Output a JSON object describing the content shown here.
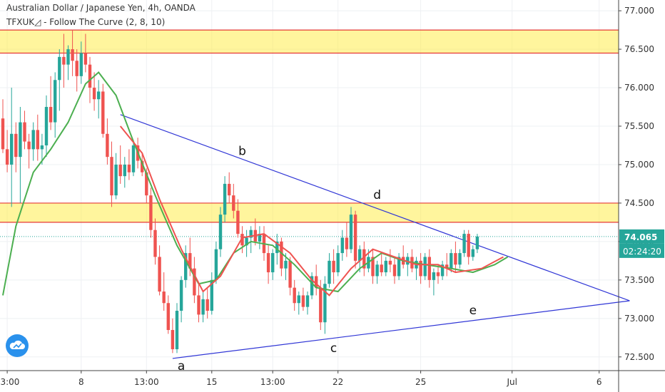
{
  "header": {
    "symbol": "Australian Dollar / Japanese Yen, 4h, OANDA",
    "indicator": "TFXUK◿ - Follow The Curve (2, 8, 10)"
  },
  "price_labels": {
    "current": "74.065",
    "countdown": "02:24:20"
  },
  "colors": {
    "up": "#26a69a",
    "down": "#ef5350",
    "zone_fill": "#ffeb3b",
    "zone_border": "#e53935",
    "trend": "#3036d6",
    "fast_ma": "#ef5350",
    "slow_ma": "#4caf50",
    "price_tag": "#26a69a"
  },
  "logo": {
    "icon": "tradingview-cloud-icon"
  },
  "chart_data": {
    "type": "candlestick",
    "title": "Australian Dollar / Japanese Yen, 4h, OANDA",
    "indicator": "Follow The Curve (2, 8, 10)",
    "y_ticks": [
      "77.000",
      "76.500",
      "76.000",
      "75.500",
      "75.000",
      "74.500",
      "74.000",
      "73.500",
      "73.000",
      "72.500"
    ],
    "ylim": [
      72.22,
      77.14
    ],
    "x_ticks": [
      {
        "label": "13:00",
        "i": 1
      },
      {
        "label": "8",
        "i": 18
      },
      {
        "label": "13:00",
        "i": 33
      },
      {
        "label": "15",
        "i": 48
      },
      {
        "label": "13:00",
        "i": 62
      },
      {
        "label": "22",
        "i": 77
      },
      {
        "label": "25",
        "i": 96
      },
      {
        "label": "Jul",
        "i": 117
      },
      {
        "label": "6",
        "i": 137
      }
    ],
    "zones": [
      [
        76.45,
        76.75
      ],
      [
        74.25,
        74.5
      ]
    ],
    "trendlines": [
      {
        "from": [
          27,
          75.65
        ],
        "to": [
          144,
          73.23
        ]
      },
      {
        "from": [
          39,
          72.48
        ],
        "to": [
          144,
          73.23
        ]
      }
    ],
    "wave_labels": [
      {
        "text": "a",
        "i": 41,
        "price": 72.48
      },
      {
        "text": "b",
        "i": 55,
        "price": 75.07
      },
      {
        "text": "c",
        "i": 76,
        "price": 72.71
      },
      {
        "text": "d",
        "i": 86,
        "price": 74.5
      },
      {
        "text": "e",
        "i": 108,
        "price": 73.2
      }
    ],
    "last_price": 74.065,
    "candles": [
      [
        75.6,
        75.85,
        75.15,
        75.2
      ],
      [
        75.2,
        75.45,
        74.9,
        75.0
      ],
      [
        75.0,
        76.0,
        74.45,
        75.4
      ],
      [
        75.4,
        75.55,
        74.9,
        75.1
      ],
      [
        75.1,
        75.75,
        74.5,
        75.55
      ],
      [
        75.55,
        75.7,
        75.2,
        75.3
      ],
      [
        75.3,
        75.4,
        74.95,
        75.2
      ],
      [
        75.2,
        75.55,
        75.05,
        75.45
      ],
      [
        75.45,
        75.65,
        75.05,
        75.2
      ],
      [
        75.2,
        75.4,
        75.0,
        75.25
      ],
      [
        75.25,
        75.9,
        75.1,
        75.75
      ],
      [
        75.75,
        76.15,
        75.45,
        75.55
      ],
      [
        75.55,
        76.2,
        75.35,
        76.1
      ],
      [
        76.1,
        76.5,
        75.7,
        76.4
      ],
      [
        76.4,
        76.7,
        76.0,
        76.3
      ],
      [
        76.3,
        76.55,
        76.1,
        76.5
      ],
      [
        76.5,
        76.75,
        76.15,
        76.35
      ],
      [
        76.35,
        76.5,
        75.95,
        76.15
      ],
      [
        76.15,
        76.6,
        76.05,
        76.45
      ],
      [
        76.45,
        76.7,
        76.2,
        76.3
      ],
      [
        76.3,
        76.4,
        75.8,
        76.0
      ],
      [
        76.0,
        76.2,
        75.7,
        75.85
      ],
      [
        75.85,
        76.1,
        75.6,
        75.95
      ],
      [
        75.95,
        76.05,
        75.35,
        75.4
      ],
      [
        75.4,
        75.6,
        75.0,
        75.1
      ],
      [
        75.1,
        75.3,
        74.45,
        74.6
      ],
      [
        74.6,
        75.15,
        74.55,
        75.0
      ],
      [
        75.0,
        75.25,
        74.75,
        74.85
      ],
      [
        74.85,
        75.1,
        74.7,
        75.0
      ],
      [
        75.0,
        75.2,
        74.8,
        74.9
      ],
      [
        74.9,
        75.3,
        74.85,
        75.25
      ],
      [
        75.25,
        75.35,
        74.95,
        75.05
      ],
      [
        75.05,
        75.15,
        74.85,
        74.9
      ],
      [
        74.9,
        74.95,
        74.5,
        74.6
      ],
      [
        74.6,
        74.7,
        74.05,
        74.15
      ],
      [
        74.15,
        74.3,
        73.7,
        73.8
      ],
      [
        73.8,
        73.95,
        73.3,
        73.35
      ],
      [
        73.35,
        73.6,
        73.1,
        73.2
      ],
      [
        73.2,
        73.3,
        72.8,
        72.85
      ],
      [
        72.85,
        73.0,
        72.55,
        72.6
      ],
      [
        72.6,
        73.2,
        72.55,
        73.1
      ],
      [
        73.1,
        73.55,
        72.95,
        73.5
      ],
      [
        73.5,
        73.95,
        73.4,
        73.85
      ],
      [
        73.85,
        74.05,
        73.55,
        73.65
      ],
      [
        73.65,
        73.8,
        73.2,
        73.3
      ],
      [
        73.3,
        73.45,
        72.95,
        73.05
      ],
      [
        73.05,
        73.35,
        72.95,
        73.25
      ],
      [
        73.25,
        73.4,
        73.0,
        73.1
      ],
      [
        73.1,
        73.6,
        73.05,
        73.5
      ],
      [
        73.5,
        74.0,
        73.45,
        73.9
      ],
      [
        73.9,
        74.45,
        73.8,
        74.35
      ],
      [
        74.35,
        74.85,
        74.25,
        74.75
      ],
      [
        74.75,
        74.9,
        74.5,
        74.6
      ],
      [
        74.6,
        74.75,
        74.3,
        74.4
      ],
      [
        74.4,
        74.55,
        74.05,
        74.1
      ],
      [
        74.1,
        74.2,
        73.85,
        73.95
      ],
      [
        73.95,
        74.15,
        73.8,
        74.05
      ],
      [
        74.05,
        74.2,
        73.85,
        74.15
      ],
      [
        74.15,
        74.3,
        73.95,
        74.0
      ],
      [
        74.0,
        74.2,
        73.9,
        74.1
      ],
      [
        74.1,
        74.2,
        73.75,
        73.85
      ],
      [
        73.85,
        73.95,
        73.45,
        73.6
      ],
      [
        73.6,
        73.9,
        73.5,
        73.85
      ],
      [
        73.85,
        74.1,
        73.7,
        74.0
      ],
      [
        74.0,
        74.05,
        73.55,
        73.65
      ],
      [
        73.65,
        73.85,
        73.5,
        73.75
      ],
      [
        73.75,
        73.8,
        73.3,
        73.4
      ],
      [
        73.4,
        73.5,
        73.1,
        73.2
      ],
      [
        73.2,
        73.35,
        73.05,
        73.3
      ],
      [
        73.3,
        73.4,
        73.1,
        73.15
      ],
      [
        73.15,
        73.35,
        73.05,
        73.3
      ],
      [
        73.3,
        73.6,
        73.25,
        73.55
      ],
      [
        73.55,
        73.7,
        73.3,
        73.4
      ],
      [
        73.4,
        73.5,
        72.85,
        72.95
      ],
      [
        72.95,
        73.55,
        72.8,
        73.45
      ],
      [
        73.45,
        73.85,
        73.4,
        73.75
      ],
      [
        73.75,
        73.9,
        73.45,
        73.6
      ],
      [
        73.6,
        73.95,
        73.55,
        73.85
      ],
      [
        73.85,
        74.15,
        73.75,
        74.05
      ],
      [
        74.05,
        74.25,
        73.8,
        73.9
      ],
      [
        73.9,
        74.45,
        73.85,
        74.35
      ],
      [
        74.35,
        74.4,
        73.65,
        73.75
      ],
      [
        73.75,
        73.95,
        73.6,
        73.9
      ],
      [
        73.9,
        74.0,
        73.55,
        73.65
      ],
      [
        73.65,
        73.9,
        73.6,
        73.8
      ],
      [
        73.8,
        73.9,
        73.45,
        73.55
      ],
      [
        73.55,
        73.75,
        73.45,
        73.7
      ],
      [
        73.7,
        73.85,
        73.55,
        73.6
      ],
      [
        73.6,
        73.8,
        73.55,
        73.75
      ],
      [
        73.75,
        73.9,
        73.6,
        73.7
      ],
      [
        73.7,
        73.8,
        73.45,
        73.55
      ],
      [
        73.55,
        73.85,
        73.5,
        73.8
      ],
      [
        73.8,
        73.95,
        73.65,
        73.7
      ],
      [
        73.7,
        73.85,
        73.55,
        73.8
      ],
      [
        73.8,
        73.9,
        73.6,
        73.65
      ],
      [
        73.65,
        73.8,
        73.5,
        73.75
      ],
      [
        73.75,
        73.85,
        73.45,
        73.55
      ],
      [
        73.55,
        73.85,
        73.5,
        73.8
      ],
      [
        73.8,
        73.9,
        73.4,
        73.5
      ],
      [
        73.5,
        73.65,
        73.3,
        73.6
      ],
      [
        73.6,
        73.7,
        73.45,
        73.55
      ],
      [
        73.55,
        73.75,
        73.5,
        73.7
      ],
      [
        73.7,
        73.85,
        73.55,
        73.65
      ],
      [
        73.65,
        73.9,
        73.6,
        73.85
      ],
      [
        73.85,
        74.0,
        73.6,
        73.7
      ],
      [
        73.7,
        73.9,
        73.65,
        73.85
      ],
      [
        73.85,
        74.15,
        73.8,
        74.1
      ],
      [
        74.1,
        74.15,
        73.7,
        73.8
      ],
      [
        73.8,
        73.95,
        73.75,
        73.9
      ],
      [
        73.9,
        74.1,
        73.85,
        74.065
      ]
    ],
    "fast_ma": [
      [
        27,
        75.5
      ],
      [
        32,
        75.15
      ],
      [
        36,
        74.55
      ],
      [
        41,
        73.9
      ],
      [
        46,
        73.35
      ],
      [
        50,
        73.55
      ],
      [
        55,
        74.05
      ],
      [
        60,
        74.1
      ],
      [
        66,
        73.85
      ],
      [
        71,
        73.5
      ],
      [
        75,
        73.3
      ],
      [
        80,
        73.65
      ],
      [
        85,
        73.9
      ],
      [
        90,
        73.8
      ],
      [
        95,
        73.7
      ],
      [
        100,
        73.7
      ],
      [
        104,
        73.6
      ],
      [
        110,
        73.65
      ],
      [
        115,
        73.8
      ]
    ],
    "slow_ma": [
      [
        0,
        73.3
      ],
      [
        3,
        74.2
      ],
      [
        7,
        74.9
      ],
      [
        11,
        75.2
      ],
      [
        15,
        75.55
      ],
      [
        19,
        76.05
      ],
      [
        22,
        76.2
      ],
      [
        26,
        75.9
      ],
      [
        30,
        75.3
      ],
      [
        35,
        74.6
      ],
      [
        40,
        73.95
      ],
      [
        45,
        73.45
      ],
      [
        49,
        73.5
      ],
      [
        53,
        73.85
      ],
      [
        57,
        74.0
      ],
      [
        62,
        73.95
      ],
      [
        67,
        73.7
      ],
      [
        72,
        73.4
      ],
      [
        77,
        73.35
      ],
      [
        82,
        73.65
      ],
      [
        87,
        73.85
      ],
      [
        92,
        73.75
      ],
      [
        97,
        73.7
      ],
      [
        103,
        73.65
      ],
      [
        108,
        73.6
      ],
      [
        113,
        73.7
      ],
      [
        116,
        73.8
      ]
    ]
  }
}
